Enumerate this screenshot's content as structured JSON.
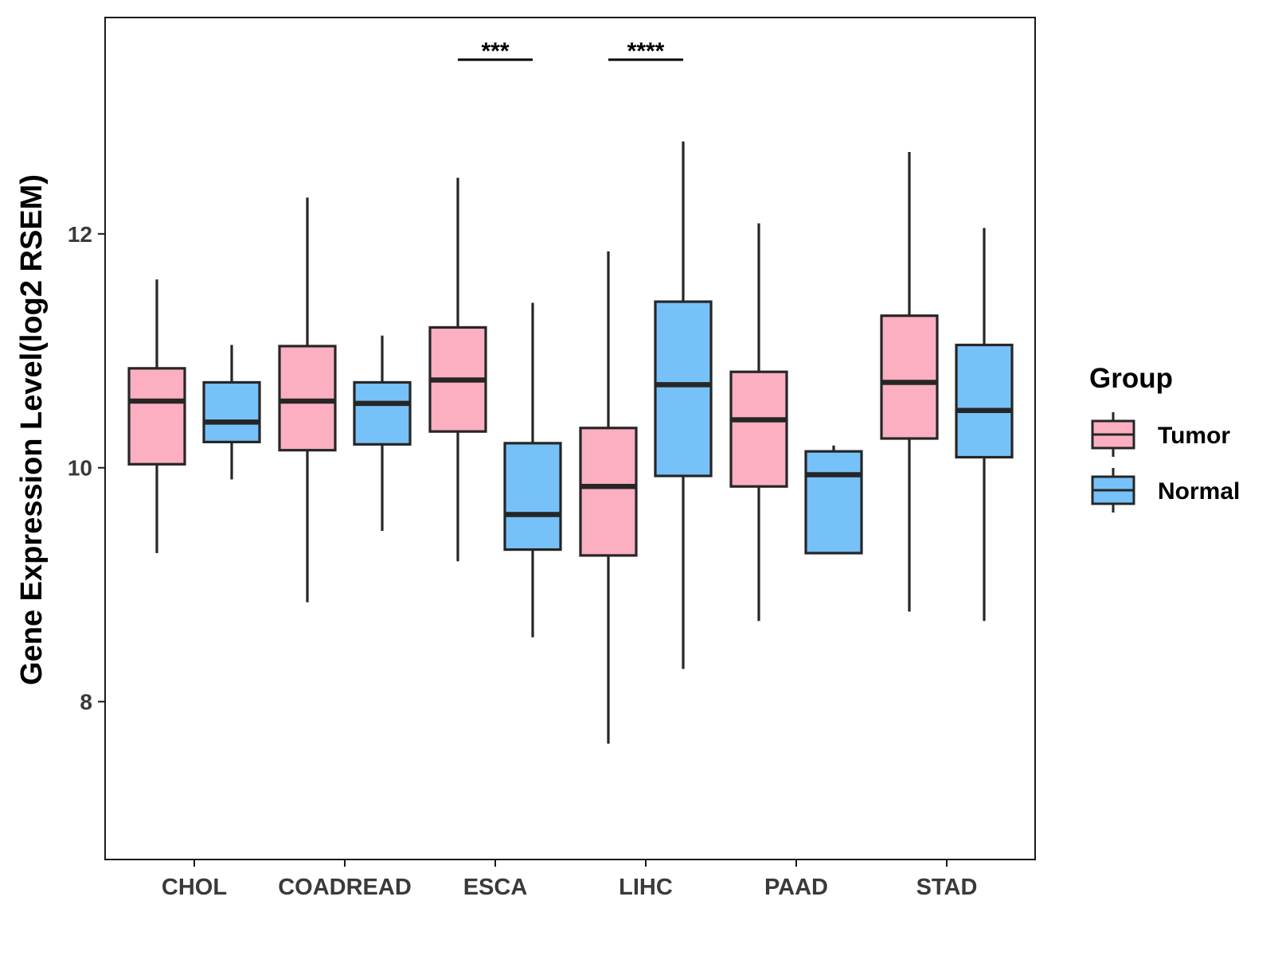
{
  "chart_data": {
    "type": "boxplot",
    "ylabel": "Gene Expression Level(log2 RSEM)",
    "xlabel": "",
    "ylim": [
      6.65,
      13.85
    ],
    "yticks": [
      8,
      10,
      12
    ],
    "ytick_labels": [
      "8",
      "10",
      "12"
    ],
    "categories": [
      "CHOL",
      "COADREAD",
      "ESCA",
      "LIHC",
      "PAAD",
      "STAD"
    ],
    "series": [
      {
        "name": "Tumor",
        "color": "#FBAFC1",
        "boxes": [
          {
            "category": "CHOL",
            "min": 9.27,
            "q1": 10.03,
            "median": 10.57,
            "q3": 10.85,
            "max": 11.61
          },
          {
            "category": "COADREAD",
            "min": 8.85,
            "q1": 10.15,
            "median": 10.57,
            "q3": 11.04,
            "max": 12.31
          },
          {
            "category": "ESCA",
            "min": 9.2,
            "q1": 10.31,
            "median": 10.75,
            "q3": 11.2,
            "max": 12.48
          },
          {
            "category": "LIHC",
            "min": 7.64,
            "q1": 9.25,
            "median": 9.84,
            "q3": 10.34,
            "max": 11.85
          },
          {
            "category": "PAAD",
            "min": 8.69,
            "q1": 9.84,
            "median": 10.41,
            "q3": 10.82,
            "max": 12.09
          },
          {
            "category": "STAD",
            "min": 8.77,
            "q1": 10.25,
            "median": 10.73,
            "q3": 11.3,
            "max": 12.7
          }
        ]
      },
      {
        "name": "Normal",
        "color": "#77C1F9",
        "boxes": [
          {
            "category": "CHOL",
            "min": 9.9,
            "q1": 10.22,
            "median": 10.39,
            "q3": 10.73,
            "max": 11.05
          },
          {
            "category": "COADREAD",
            "min": 9.46,
            "q1": 10.2,
            "median": 10.55,
            "q3": 10.73,
            "max": 11.13
          },
          {
            "category": "ESCA",
            "min": 8.55,
            "q1": 9.3,
            "median": 9.6,
            "q3": 10.21,
            "max": 11.41
          },
          {
            "category": "LIHC",
            "min": 8.28,
            "q1": 9.93,
            "median": 10.71,
            "q3": 11.42,
            "max": 12.79
          },
          {
            "category": "PAAD",
            "min": 9.27,
            "q1": 9.27,
            "median": 9.94,
            "q3": 10.14,
            "max": 10.19
          },
          {
            "category": "STAD",
            "min": 8.69,
            "q1": 10.09,
            "median": 10.49,
            "q3": 11.05,
            "max": 12.05
          }
        ]
      }
    ],
    "annotations": [
      {
        "category": "ESCA",
        "text": "***"
      },
      {
        "category": "LIHC",
        "text": "****"
      }
    ],
    "legend": {
      "title": "Group",
      "position": "right",
      "entries": [
        "Tumor",
        "Normal"
      ]
    }
  }
}
